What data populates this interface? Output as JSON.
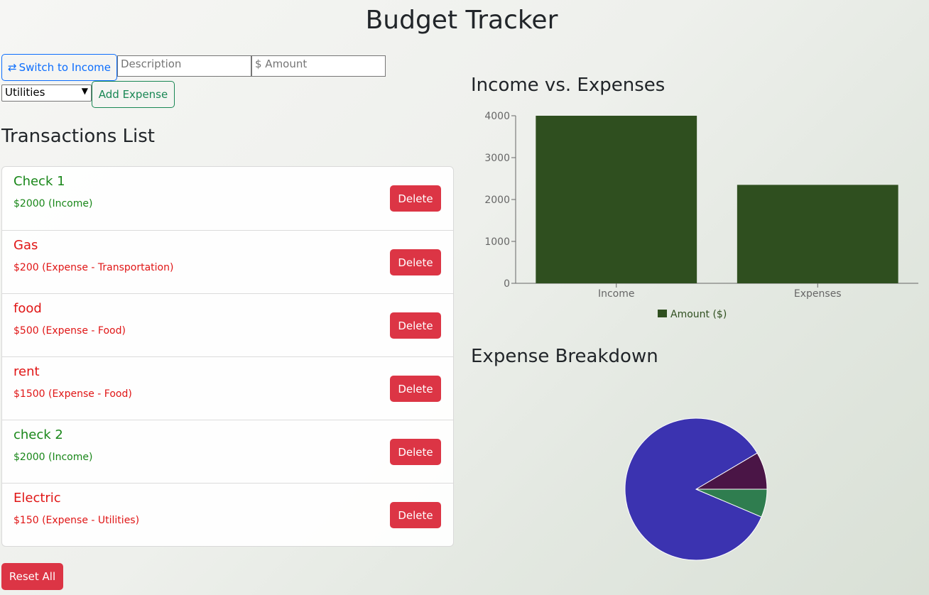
{
  "header": {
    "title": "Budget Tracker"
  },
  "form": {
    "switch_button": "Switch to Income",
    "description_placeholder": "Description",
    "amount_placeholder": "$ Amount",
    "category_selected": "Utilities",
    "add_button": "Add Expense"
  },
  "transactions": {
    "title": "Transactions List",
    "delete_label": "Delete",
    "items": [
      {
        "name": "Check 1",
        "detail": "$2000 (Income)",
        "color": "#198719"
      },
      {
        "name": "Gas",
        "detail": "$200 (Expense - Transportation)",
        "color": "#e01515"
      },
      {
        "name": "food",
        "detail": "$500 (Expense - Food)",
        "color": "#e01515"
      },
      {
        "name": "rent",
        "detail": "$1500 (Expense - Food)",
        "color": "#e01515"
      },
      {
        "name": "check 2",
        "detail": "$2000 (Income)",
        "color": "#198719"
      },
      {
        "name": "Electric",
        "detail": "$150 (Expense - Utilities)",
        "color": "#e01515"
      }
    ]
  },
  "reset_button": "Reset All",
  "chart_data": [
    {
      "type": "bar",
      "title": "Income vs. Expenses",
      "categories": [
        "Income",
        "Expenses"
      ],
      "series": [
        {
          "name": "Amount ($)",
          "color": "#2f4f1f",
          "values": [
            4000,
            2350
          ]
        }
      ],
      "ylim": [
        0,
        4000
      ],
      "yticks": [
        0,
        1000,
        2000,
        3000,
        4000
      ],
      "grid": false,
      "legend": "bottom"
    },
    {
      "type": "pie",
      "title": "Expense Breakdown",
      "values": [
        200,
        2000,
        150
      ],
      "colors": [
        "#4a1546",
        "#3b33b0",
        "#2f7d4f"
      ]
    }
  ]
}
